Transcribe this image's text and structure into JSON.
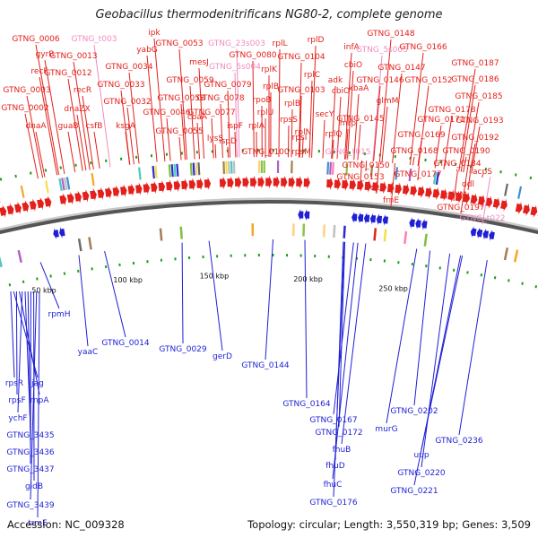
{
  "title": "Geobacillus thermodenitrificans NG80-2, complete genome",
  "accession_label": "Accession: NC_009328",
  "summary_label": "Topology: circular; Length: 3,550,319 bp; Genes: 3,509",
  "colors": {
    "forward_gene": "#e3201b",
    "rna_gene": "#f08cc0",
    "reverse_gene": "#1f1fd6",
    "backbone": "#555555",
    "tick_mark": "#1b9e1b",
    "scale_text": "#111111"
  },
  "forward_labels": [
    {
      "text": "GTNG_0006",
      "type": "cds"
    },
    {
      "text": "gyrB",
      "type": "cds"
    },
    {
      "text": "recF",
      "type": "cds"
    },
    {
      "text": "GTNG_0003",
      "type": "cds"
    },
    {
      "text": "GTNG_0002",
      "type": "cds"
    },
    {
      "text": "dnaA",
      "type": "cds"
    },
    {
      "text": "GTNG_t003",
      "type": "rna"
    },
    {
      "text": "GTNG_0013",
      "type": "cds"
    },
    {
      "text": "GTNG_0012",
      "type": "cds"
    },
    {
      "text": "dnaZX",
      "type": "cds"
    },
    {
      "text": "guaB",
      "type": "cds"
    },
    {
      "text": "recR",
      "type": "cds"
    },
    {
      "text": "csfB",
      "type": "cds"
    },
    {
      "text": "ipk",
      "type": "cds"
    },
    {
      "text": "yabG",
      "type": "cds"
    },
    {
      "text": "GTNG_0034",
      "type": "cds"
    },
    {
      "text": "GTNG_0033",
      "type": "cds"
    },
    {
      "text": "GTNG_0032",
      "type": "cds"
    },
    {
      "text": "ksgA",
      "type": "cds"
    },
    {
      "text": "GTNG_0053",
      "type": "cds"
    },
    {
      "text": "mesJ",
      "type": "cds"
    },
    {
      "text": "GTNG_0059",
      "type": "cds"
    },
    {
      "text": "GTNG_0058",
      "type": "cds"
    },
    {
      "text": "GTNG_0046",
      "type": "cds"
    },
    {
      "text": "coaA",
      "type": "cds"
    },
    {
      "text": "GTNG_0055",
      "type": "cds"
    },
    {
      "text": "lysS",
      "type": "cds"
    },
    {
      "text": "GTNG_23s003",
      "type": "rna"
    },
    {
      "text": "GTNG_5s004",
      "type": "rna"
    },
    {
      "text": "GTNG_0079",
      "type": "cds"
    },
    {
      "text": "GTNG_0078",
      "type": "cds"
    },
    {
      "text": "GTNG_0077",
      "type": "cds"
    },
    {
      "text": "ispF",
      "type": "cds"
    },
    {
      "text": "ispD",
      "type": "cds"
    },
    {
      "text": "rplL",
      "type": "cds"
    },
    {
      "text": "GTNG_0080",
      "type": "cds"
    },
    {
      "text": "rplK",
      "type": "cds"
    },
    {
      "text": "rplB",
      "type": "cds"
    },
    {
      "text": "rpoB",
      "type": "cds"
    },
    {
      "text": "rplU",
      "type": "cds"
    },
    {
      "text": "rplA",
      "type": "cds"
    },
    {
      "text": "GTNG_0100",
      "type": "cds"
    },
    {
      "text": "rplD",
      "type": "cds"
    },
    {
      "text": "GTNG_0104",
      "type": "cds"
    },
    {
      "text": "rplC",
      "type": "cds"
    },
    {
      "text": "GTNG_0103",
      "type": "cds"
    },
    {
      "text": "rplB",
      "type": "cds"
    },
    {
      "text": "rpsS",
      "type": "cds"
    },
    {
      "text": "rplN",
      "type": "cds"
    },
    {
      "text": "rpsM",
      "type": "cds"
    },
    {
      "text": "rpsI",
      "type": "cds"
    },
    {
      "text": "infA",
      "type": "cds"
    },
    {
      "text": "cbiO",
      "type": "cds"
    },
    {
      "text": "adk",
      "type": "cds"
    },
    {
      "text": "cbiO",
      "type": "cds"
    },
    {
      "text": "secY",
      "type": "cds"
    },
    {
      "text": "rplQ",
      "type": "cds"
    },
    {
      "text": "mrp",
      "type": "cds"
    },
    {
      "text": "kbaA",
      "type": "cds"
    },
    {
      "text": "GTNG_0148",
      "type": "cds"
    },
    {
      "text": "GTNG_5s005",
      "type": "rna"
    },
    {
      "text": "GTNG_0147",
      "type": "cds"
    },
    {
      "text": "GTNG_0146",
      "type": "cds"
    },
    {
      "text": "glmM",
      "type": "cds"
    },
    {
      "text": "GTNG_0145",
      "type": "cds"
    },
    {
      "text": "GTNG_t015",
      "type": "rna"
    },
    {
      "text": "GTNG_0150",
      "type": "cds"
    },
    {
      "text": "GTNG_0153",
      "type": "cds"
    },
    {
      "text": "GTNG_0166",
      "type": "cds"
    },
    {
      "text": "GTNG_0152",
      "type": "cds"
    },
    {
      "text": "GTNG_0178",
      "type": "cds"
    },
    {
      "text": "GTNG_0171",
      "type": "cds"
    },
    {
      "text": "GTNG_0169",
      "type": "cds"
    },
    {
      "text": "GTNG_0168",
      "type": "cds"
    },
    {
      "text": "rocD",
      "type": "cds"
    },
    {
      "text": "frnE",
      "type": "cds"
    },
    {
      "text": "GTNG_0177",
      "type": "cds"
    },
    {
      "text": "GTNG_0187",
      "type": "cds"
    },
    {
      "text": "GTNG_0186",
      "type": "cds"
    },
    {
      "text": "GTNG_0185",
      "type": "cds"
    },
    {
      "text": "GTNG_0193",
      "type": "cds"
    },
    {
      "text": "GTNG_0192",
      "type": "cds"
    },
    {
      "text": "GTNG_0190",
      "type": "cds"
    },
    {
      "text": "GTNG_0184",
      "type": "cds"
    },
    {
      "text": "spoIIM",
      "type": "cds"
    },
    {
      "text": "acpS",
      "type": "cds"
    },
    {
      "text": "ddl",
      "type": "cds"
    },
    {
      "text": "GTNG_0197",
      "type": "cds"
    },
    {
      "text": "GTNG_t022",
      "type": "rna"
    }
  ],
  "reverse_labels": [
    {
      "text": "rpmH"
    },
    {
      "text": "yaaC"
    },
    {
      "text": "GTNG_0014"
    },
    {
      "text": "GTNG_0029"
    },
    {
      "text": "gerD"
    },
    {
      "text": "GTNG_0144"
    },
    {
      "text": "GTNG_0164"
    },
    {
      "text": "GTNG_0167"
    },
    {
      "text": "GTNG_0172"
    },
    {
      "text": "fhuB"
    },
    {
      "text": "fhuD"
    },
    {
      "text": "fhuC"
    },
    {
      "text": "GTNG_0176"
    },
    {
      "text": "murG"
    },
    {
      "text": "GTNG_0202"
    },
    {
      "text": "uup"
    },
    {
      "text": "GTNG_0220"
    },
    {
      "text": "GTNG_0221"
    },
    {
      "text": "GTNG_0236"
    },
    {
      "text": "rpsR"
    },
    {
      "text": "jag"
    },
    {
      "text": "rpsF"
    },
    {
      "text": "rnpA"
    },
    {
      "text": "ychF"
    },
    {
      "text": "GTNG_3435"
    },
    {
      "text": "GTNG_3436"
    },
    {
      "text": "GTNG_3437"
    },
    {
      "text": "gidB"
    },
    {
      "text": "GTNG_3439"
    },
    {
      "text": "trmE"
    }
  ],
  "scale_labels": [
    "3550 kbp",
    "50 kbp",
    "100 kbp",
    "150 kbp",
    "200 kbp",
    "250 kbp"
  ]
}
